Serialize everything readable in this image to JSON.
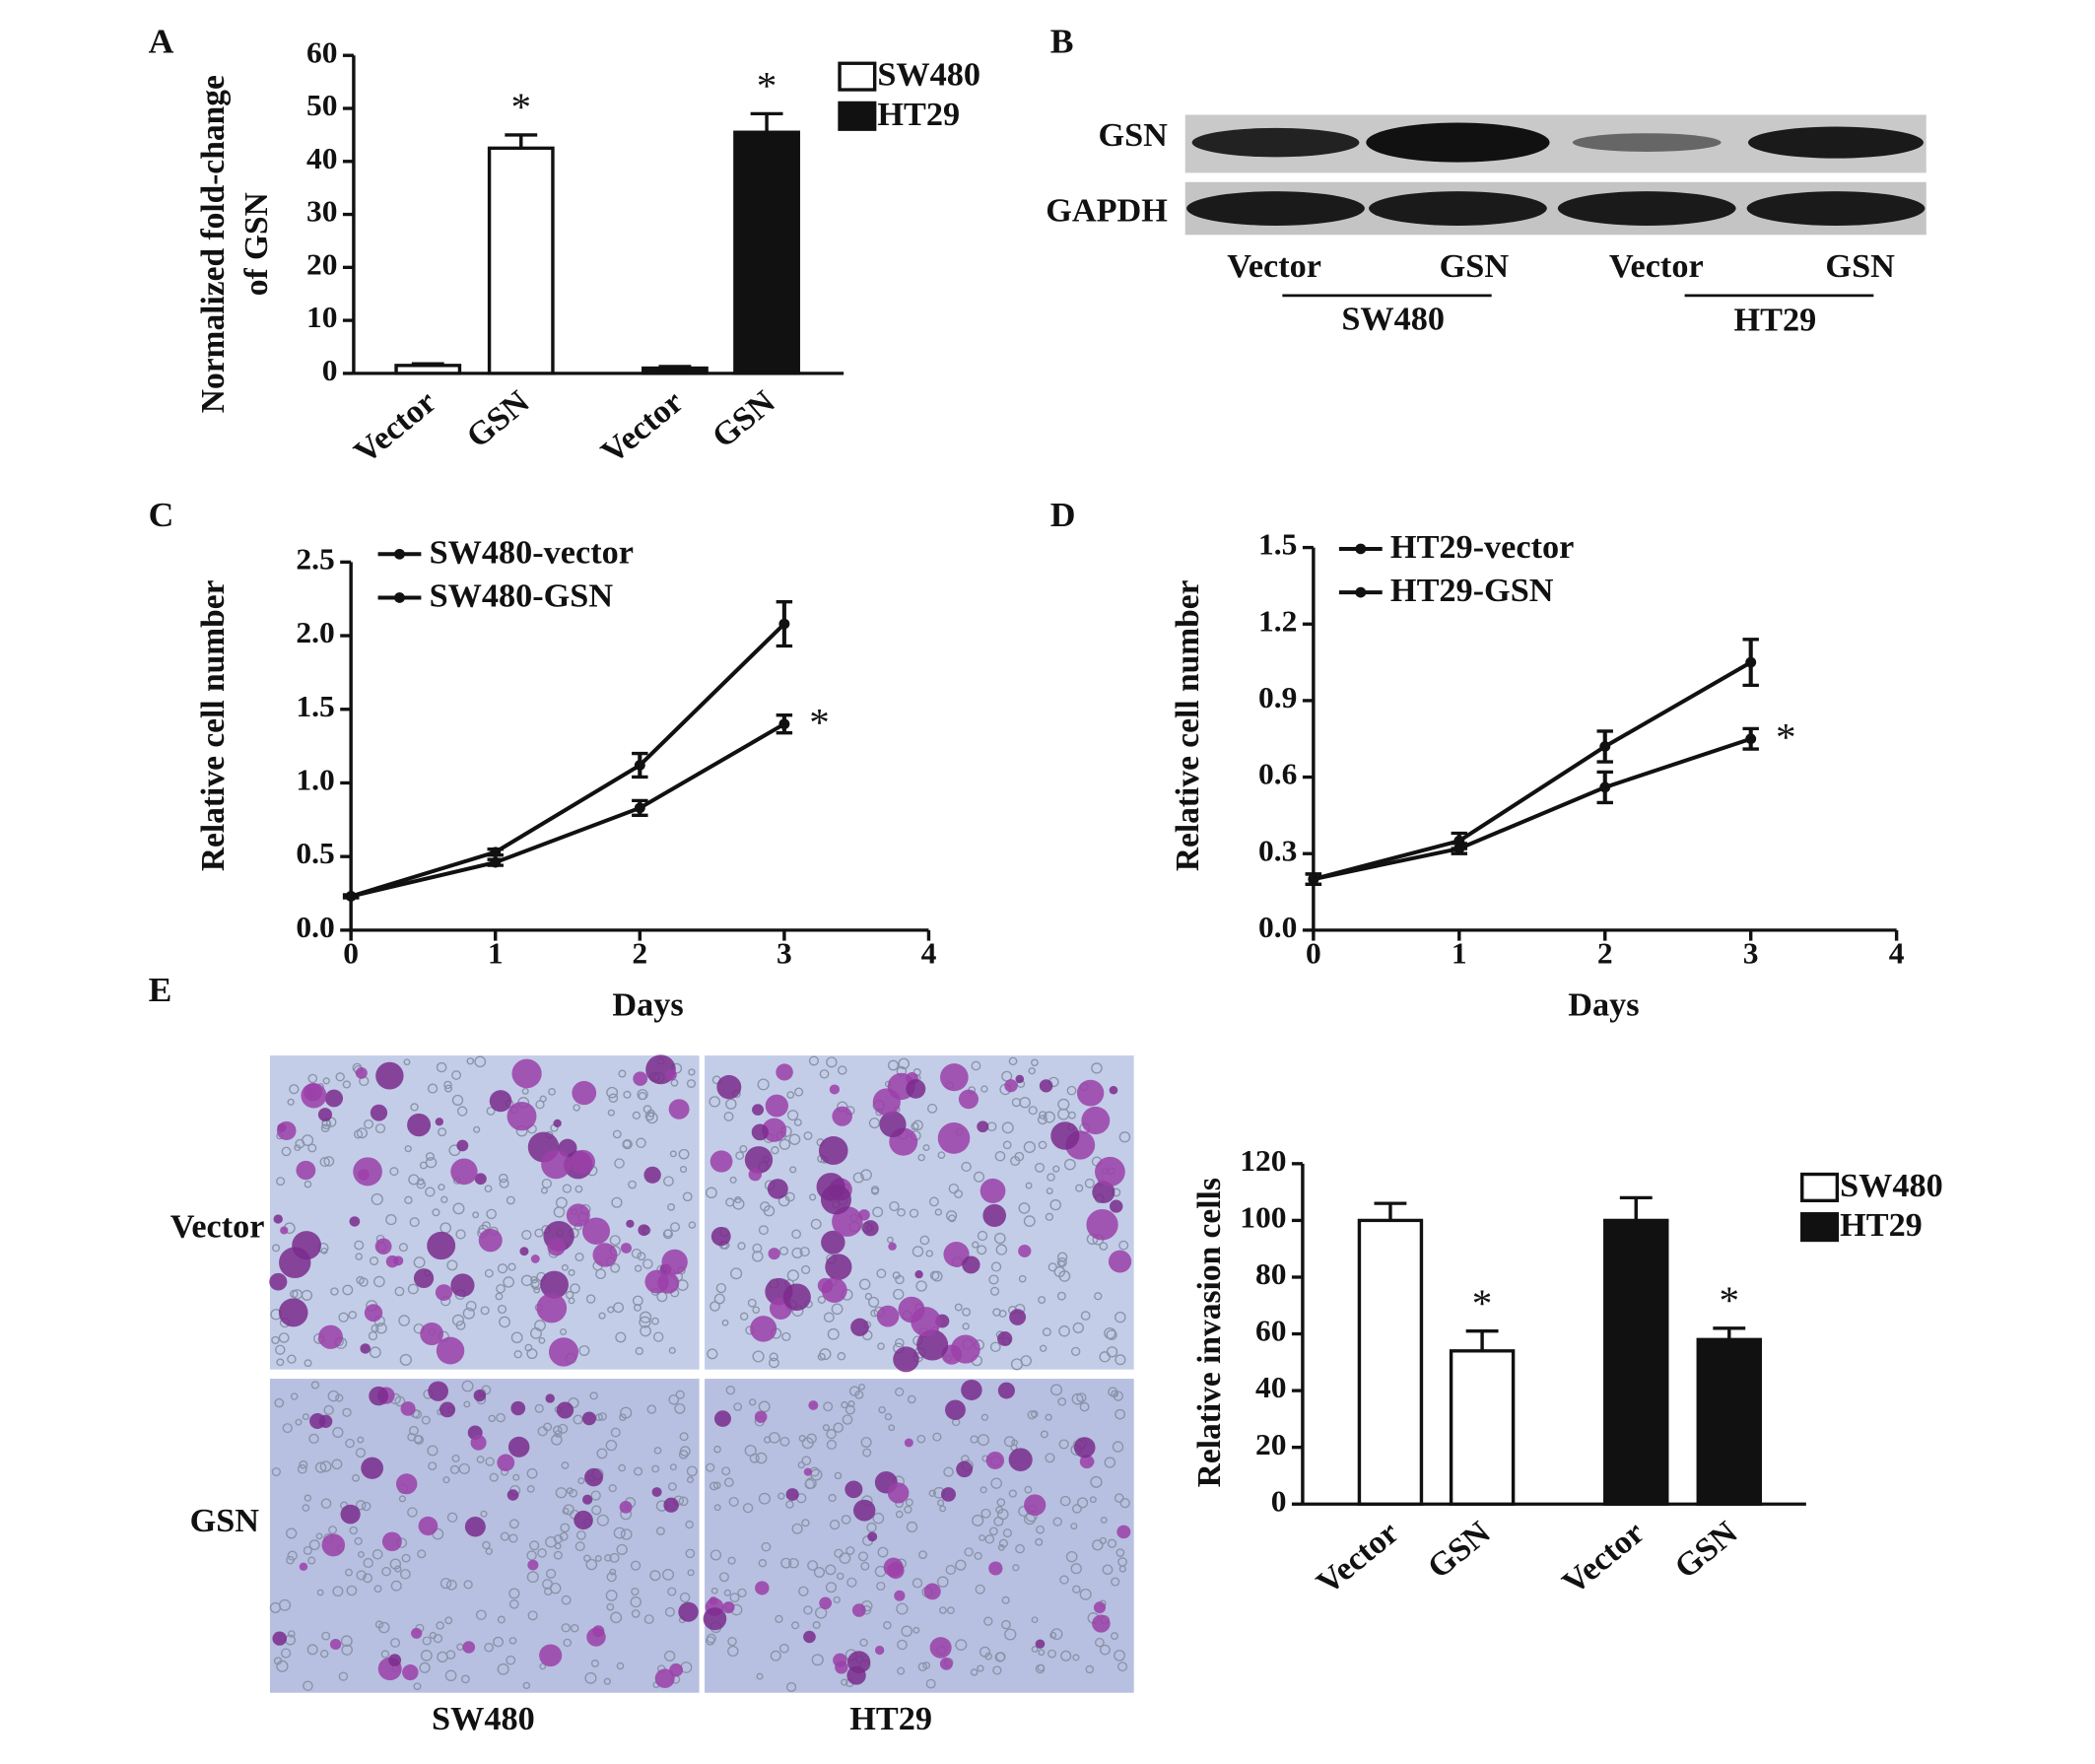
{
  "panel_labels": [
    "A",
    "B",
    "C",
    "D",
    "E"
  ],
  "blot": {
    "rows": [
      "GSN",
      "GAPDH"
    ],
    "lanes": [
      "Vector",
      "GSN",
      "Vector",
      "GSN"
    ],
    "groups": [
      "SW480",
      "HT29"
    ]
  },
  "micrographs": {
    "rows": [
      "Vector",
      "GSN"
    ],
    "columns": [
      "SW480",
      "HT29"
    ]
  },
  "chart_data": [
    {
      "type": "bar",
      "ylabel": [
        "Normalized fold-change",
        "of GSN"
      ],
      "categories": [
        "Vector",
        "GSN",
        "Vector",
        "GSN"
      ],
      "series": [
        {
          "name": "SW480",
          "color": "#ffffff",
          "values": [
            1.5,
            42.5,
            null,
            null
          ],
          "errors": [
            0.3,
            2.5,
            null,
            null
          ]
        },
        {
          "name": "HT29",
          "color": "#111111",
          "values": [
            null,
            null,
            1,
            45.5
          ],
          "errors": [
            null,
            null,
            0.3,
            3.5
          ]
        }
      ],
      "annotations": [
        {
          "text": "*",
          "series": 0,
          "index": 1
        },
        {
          "text": "*",
          "series": 1,
          "index": 3
        }
      ],
      "ylim": [
        0,
        60
      ],
      "yticks": [
        0,
        10,
        20,
        30,
        40,
        50,
        60
      ]
    },
    {
      "type": "line",
      "xlabel": "Days",
      "ylabel": "Relative cell number",
      "x": [
        0,
        1,
        2,
        3
      ],
      "series": [
        {
          "name": "SW480-vector",
          "color": "#111111",
          "values": [
            0.23,
            0.53,
            1.12,
            2.08
          ],
          "errors": [
            0.01,
            0.02,
            0.08,
            0.15
          ]
        },
        {
          "name": "SW480-GSN",
          "color": "#111111",
          "values": [
            0.23,
            0.46,
            0.83,
            1.4
          ],
          "errors": [
            0.01,
            0.02,
            0.05,
            0.06
          ]
        }
      ],
      "annotations": [
        {
          "text": "*",
          "series": 1,
          "index": 3
        }
      ],
      "xlim": [
        0,
        4
      ],
      "xticks": [
        0,
        1,
        2,
        3,
        4
      ],
      "ylim": [
        0,
        2.5
      ],
      "yticks": [
        {
          "value": 0,
          "label": "0.0"
        },
        0.5,
        {
          "value": 1,
          "label": "1.0"
        },
        1.5,
        {
          "value": 2,
          "label": "2.0"
        },
        2.5
      ]
    },
    {
      "type": "line",
      "xlabel": "Days",
      "ylabel": "Relative cell number",
      "x": [
        0,
        1,
        2,
        3
      ],
      "series": [
        {
          "name": "HT29-vector",
          "color": "#111111",
          "values": [
            0.2,
            0.35,
            0.72,
            1.05
          ],
          "errors": [
            0.02,
            0.03,
            0.06,
            0.09
          ]
        },
        {
          "name": "HT29-GSN",
          "color": "#111111",
          "values": [
            0.2,
            0.32,
            0.56,
            0.75
          ],
          "errors": [
            0.02,
            0.02,
            0.06,
            0.04
          ]
        }
      ],
      "annotations": [
        {
          "text": "*",
          "series": 1,
          "index": 3
        }
      ],
      "xlim": [
        0,
        4
      ],
      "xticks": [
        0,
        1,
        2,
        3,
        4
      ],
      "ylim": [
        0,
        1.5
      ],
      "yticks": [
        {
          "value": 0,
          "label": "0.0"
        },
        0.3,
        0.6,
        0.9,
        1.2,
        1.5
      ]
    },
    {
      "type": "bar",
      "ylabel": [
        "Relative invasion cells"
      ],
      "categories": [
        "Vector",
        "GSN",
        "Vector",
        "GSN"
      ],
      "series": [
        {
          "name": "SW480",
          "color": "#ffffff",
          "values": [
            100,
            54,
            null,
            null
          ],
          "errors": [
            6,
            7,
            null,
            null
          ]
        },
        {
          "name": "HT29",
          "color": "#111111",
          "values": [
            null,
            null,
            100,
            58
          ],
          "errors": [
            null,
            null,
            8,
            4
          ]
        }
      ],
      "annotations": [
        {
          "text": "*",
          "series": 0,
          "index": 1
        },
        {
          "text": "*",
          "series": 1,
          "index": 3
        }
      ],
      "ylim": [
        0,
        120
      ],
      "yticks": [
        0,
        20,
        40,
        60,
        80,
        100,
        120
      ]
    }
  ]
}
